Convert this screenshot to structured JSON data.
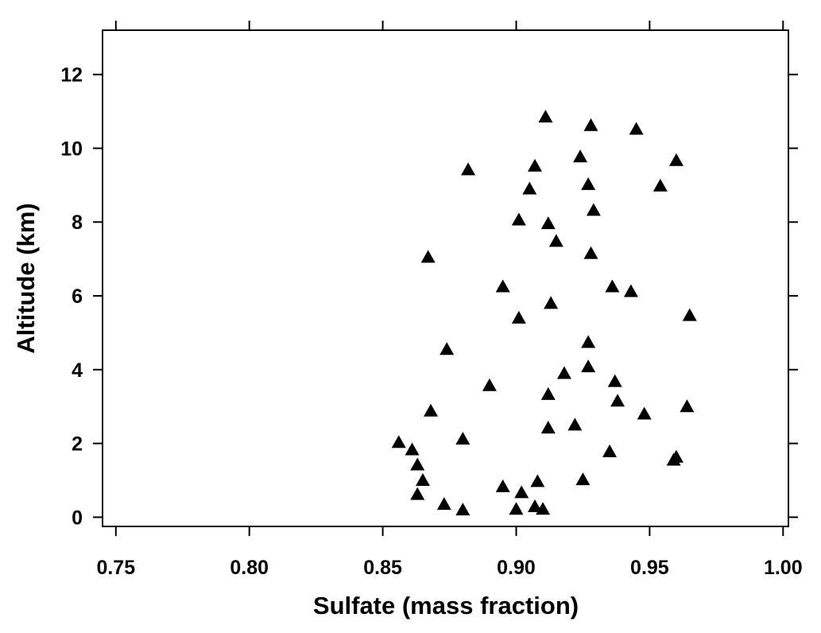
{
  "chart_data": {
    "type": "scatter",
    "xlabel": "Sulfate (mass fraction)",
    "ylabel": "Altitude (km)",
    "xlim": [
      0.745,
      1.002
    ],
    "ylim": [
      -0.25,
      13.2
    ],
    "xticks": [
      0.75,
      0.8,
      0.85,
      0.9,
      0.95,
      1.0
    ],
    "xtick_labels": [
      "0.75",
      "0.80",
      "0.85",
      "0.90",
      "0.95",
      "1.00"
    ],
    "yticks": [
      0,
      2,
      4,
      6,
      8,
      10,
      12
    ],
    "ytick_labels": [
      "0",
      "2",
      "4",
      "6",
      "8",
      "10",
      "12"
    ],
    "grid": false,
    "marker": "filled-triangle",
    "marker_color": "#000000",
    "points": [
      {
        "x": 0.911,
        "y": 10.85
      },
      {
        "x": 0.928,
        "y": 10.62
      },
      {
        "x": 0.945,
        "y": 10.52
      },
      {
        "x": 0.924,
        "y": 9.77
      },
      {
        "x": 0.96,
        "y": 9.67
      },
      {
        "x": 0.907,
        "y": 9.52
      },
      {
        "x": 0.882,
        "y": 9.42
      },
      {
        "x": 0.927,
        "y": 9.02
      },
      {
        "x": 0.954,
        "y": 8.98
      },
      {
        "x": 0.905,
        "y": 8.9
      },
      {
        "x": 0.929,
        "y": 8.32
      },
      {
        "x": 0.901,
        "y": 8.06
      },
      {
        "x": 0.912,
        "y": 7.96
      },
      {
        "x": 0.915,
        "y": 7.48
      },
      {
        "x": 0.928,
        "y": 7.15
      },
      {
        "x": 0.867,
        "y": 7.05
      },
      {
        "x": 0.895,
        "y": 6.25
      },
      {
        "x": 0.936,
        "y": 6.25
      },
      {
        "x": 0.943,
        "y": 6.12
      },
      {
        "x": 0.913,
        "y": 5.8
      },
      {
        "x": 0.965,
        "y": 5.47
      },
      {
        "x": 0.901,
        "y": 5.4
      },
      {
        "x": 0.927,
        "y": 4.74
      },
      {
        "x": 0.874,
        "y": 4.55
      },
      {
        "x": 0.927,
        "y": 4.08
      },
      {
        "x": 0.918,
        "y": 3.9
      },
      {
        "x": 0.937,
        "y": 3.68
      },
      {
        "x": 0.89,
        "y": 3.57
      },
      {
        "x": 0.912,
        "y": 3.33
      },
      {
        "x": 0.938,
        "y": 3.15
      },
      {
        "x": 0.964,
        "y": 3.0
      },
      {
        "x": 0.868,
        "y": 2.88
      },
      {
        "x": 0.948,
        "y": 2.8
      },
      {
        "x": 0.922,
        "y": 2.5
      },
      {
        "x": 0.912,
        "y": 2.42
      },
      {
        "x": 0.88,
        "y": 2.12
      },
      {
        "x": 0.856,
        "y": 2.03
      },
      {
        "x": 0.861,
        "y": 1.83
      },
      {
        "x": 0.935,
        "y": 1.78
      },
      {
        "x": 0.96,
        "y": 1.63
      },
      {
        "x": 0.959,
        "y": 1.55
      },
      {
        "x": 0.863,
        "y": 1.42
      },
      {
        "x": 0.925,
        "y": 1.02
      },
      {
        "x": 0.865,
        "y": 1.0
      },
      {
        "x": 0.908,
        "y": 0.97
      },
      {
        "x": 0.895,
        "y": 0.83
      },
      {
        "x": 0.902,
        "y": 0.67
      },
      {
        "x": 0.863,
        "y": 0.62
      },
      {
        "x": 0.873,
        "y": 0.35
      },
      {
        "x": 0.907,
        "y": 0.29
      },
      {
        "x": 0.88,
        "y": 0.2
      },
      {
        "x": 0.9,
        "y": 0.22
      },
      {
        "x": 0.91,
        "y": 0.22
      }
    ]
  }
}
